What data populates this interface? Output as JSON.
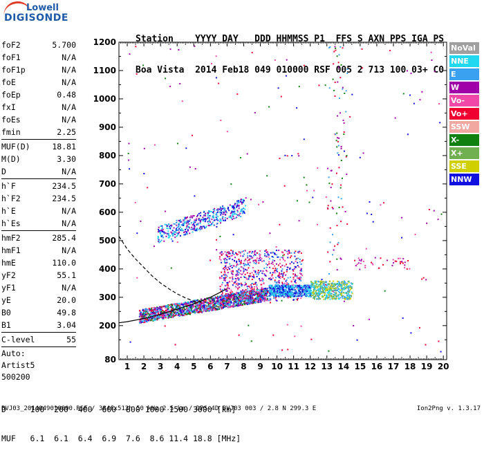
{
  "logo": {
    "brand_top": "Lowell",
    "brand_bottom": "DIGISONDE"
  },
  "header": {
    "line1": "Station    YYYY DAY   DDD HHMMSS P1  FFS S AXN PPS IGA PS",
    "line2": "Boa Vista  2014 Feb18 049 010000 RSF 005 2 713 100 03+ C0"
  },
  "params": [
    {
      "type": "row",
      "label": "foF2",
      "value": "5.700"
    },
    {
      "type": "row",
      "label": "foF1",
      "value": "N/A"
    },
    {
      "type": "row",
      "label": "foF1p",
      "value": "N/A"
    },
    {
      "type": "row",
      "label": "foE",
      "value": "N/A"
    },
    {
      "type": "row",
      "label": "foEp",
      "value": "0.48"
    },
    {
      "type": "row",
      "label": "fxI",
      "value": "N/A"
    },
    {
      "type": "row",
      "label": "foEs",
      "value": "N/A"
    },
    {
      "type": "row",
      "label": "fmin",
      "value": "2.25"
    },
    {
      "type": "sep"
    },
    {
      "type": "row",
      "label": "MUF(D)",
      "value": "18.81"
    },
    {
      "type": "row",
      "label": "M(D)",
      "value": "3.30"
    },
    {
      "type": "row",
      "label": "D",
      "value": "N/A"
    },
    {
      "type": "sep"
    },
    {
      "type": "row",
      "label": "h`F",
      "value": "234.5"
    },
    {
      "type": "row",
      "label": "h`F2",
      "value": "234.5"
    },
    {
      "type": "row",
      "label": "h`E",
      "value": "N/A"
    },
    {
      "type": "row",
      "label": "h`Es",
      "value": "N/A"
    },
    {
      "type": "sep"
    },
    {
      "type": "row",
      "label": "hmF2",
      "value": "285.4"
    },
    {
      "type": "row",
      "label": "hmF1",
      "value": "N/A"
    },
    {
      "type": "row",
      "label": "hmE",
      "value": "110.0"
    },
    {
      "type": "row",
      "label": "yF2",
      "value": "55.1"
    },
    {
      "type": "row",
      "label": "yF1",
      "value": "N/A"
    },
    {
      "type": "row",
      "label": "yE",
      "value": "20.0"
    },
    {
      "type": "row",
      "label": "B0",
      "value": "49.8"
    },
    {
      "type": "row",
      "label": "B1",
      "value": "3.04"
    },
    {
      "type": "sep"
    },
    {
      "type": "row",
      "label": "C-level",
      "value": "55"
    },
    {
      "type": "sep"
    },
    {
      "type": "text",
      "label": "Auto:"
    },
    {
      "type": "text",
      "label": "Artist5"
    },
    {
      "type": "text",
      "label": "500200"
    }
  ],
  "legend": [
    {
      "label": "NoVal",
      "color": "#a0a0a0"
    },
    {
      "label": "NNE",
      "color": "#22d8f0"
    },
    {
      "label": "E",
      "color": "#3aa0f0"
    },
    {
      "label": "W",
      "color": "#a000a8"
    },
    {
      "label": "Vo-",
      "color": "#f048a8"
    },
    {
      "label": "Vo+",
      "color": "#f00030"
    },
    {
      "label": "SSW",
      "color": "#f0a8a0"
    },
    {
      "label": "X-",
      "color": "#108010"
    },
    {
      "label": "X+",
      "color": "#70b050"
    },
    {
      "label": "SSE",
      "color": "#d0d000"
    },
    {
      "label": "NNW",
      "color": "#1010e0"
    }
  ],
  "dmuf": {
    "line1": "D     100  200  400  600  800 1000 1500 3000 [km]",
    "line2": "MUF   6.1  6.1  6.4  6.9  7.6  8.6 11.4 18.8 [MHz]"
  },
  "footer": "BVJ03_2014049010000.RSF / 384fx512h 50 kHz 2.5 km / DPS-4D BVJ03 003 / 2.8 N 299.3 E",
  "version": "Ion2Png v. 1.3.17",
  "chart_data": {
    "type": "scatter",
    "xlim": [
      0.5,
      20.2
    ],
    "ylim": [
      80,
      1200
    ],
    "x_ticks": [
      1,
      2,
      3,
      4,
      5,
      6,
      7,
      8,
      9,
      10,
      11,
      12,
      13,
      14,
      15,
      16,
      17,
      18,
      19,
      20
    ],
    "y_ticks": [
      200,
      300,
      400,
      500,
      600,
      700,
      800,
      900,
      1000,
      1100,
      1200
    ],
    "y_tick_labels": [
      "200",
      "300",
      "400",
      "500",
      "600",
      "700",
      "800",
      "900",
      "1000",
      "1100",
      "1200"
    ],
    "y_bottom_label": "80",
    "grid": false,
    "legend_placement": "right",
    "clusters": [
      {
        "name": "F-layer trace",
        "x": [
          1.7,
          9.4
        ],
        "y": [
          225,
          330
        ],
        "slope": true,
        "n": 1800,
        "colors": [
          "#22d8f0",
          "#3aa0f0",
          "#a000a8",
          "#f048a8",
          "#f00030",
          "#1010e0",
          "#108010"
        ]
      },
      {
        "name": "F-layer spread",
        "x": [
          6.5,
          11.5
        ],
        "y": [
          290,
          470
        ],
        "slope": false,
        "n": 700,
        "colors": [
          "#a000a8",
          "#f048a8",
          "#f00030",
          "#1010e0",
          "#3aa0f0"
        ]
      },
      {
        "name": "Band 9.5-12",
        "x": [
          9.5,
          12
        ],
        "y": [
          305,
          345
        ],
        "slope": false,
        "n": 450,
        "colors": [
          "#22d8f0",
          "#3aa0f0",
          "#1010e0"
        ]
      },
      {
        "name": "Band 12-14.5",
        "x": [
          12,
          14.5
        ],
        "y": [
          295,
          360
        ],
        "slope": false,
        "n": 450,
        "colors": [
          "#22d8f0",
          "#3aa0f0",
          "#d0d000",
          "#70b050"
        ]
      },
      {
        "name": "Second hop",
        "x": [
          2.8,
          8.1
        ],
        "y": [
          510,
          645
        ],
        "slope": true,
        "n": 450,
        "colors": [
          "#1010e0",
          "#22d8f0",
          "#3aa0f0",
          "#a000a8"
        ]
      },
      {
        "name": "High frequency echoes",
        "x": [
          14.5,
          18
        ],
        "y": [
          400,
          445
        ],
        "slope": false,
        "n": 40,
        "colors": [
          "#f00030",
          "#f048a8",
          "#a000a8"
        ]
      },
      {
        "name": "Sparse",
        "x": [
          1,
          20
        ],
        "y": [
          100,
          1190
        ],
        "slope": false,
        "n": 180,
        "colors": [
          "#f00030",
          "#a000a8",
          "#f048a8",
          "#1010e0",
          "#108010"
        ]
      },
      {
        "name": "Vertical column",
        "x": [
          13,
          14.2
        ],
        "y": [
          380,
          1190
        ],
        "slope": false,
        "n": 90,
        "colors": [
          "#f00030",
          "#a000a8",
          "#108010",
          "#3aa0f0"
        ]
      }
    ],
    "curves": [
      {
        "name": "Profile solid",
        "style": "solid",
        "points": [
          [
            0.5,
            210
          ],
          [
            1,
            214
          ],
          [
            2,
            225
          ],
          [
            3,
            240
          ],
          [
            4,
            258
          ],
          [
            5,
            277
          ],
          [
            6,
            300
          ],
          [
            6.5,
            315
          ],
          [
            7,
            330
          ]
        ]
      },
      {
        "name": "Profile dashed",
        "style": "dashed",
        "points": [
          [
            0.5,
            515
          ],
          [
            1,
            470
          ],
          [
            1.5,
            435
          ],
          [
            2,
            405
          ],
          [
            2.5,
            375
          ],
          [
            3,
            350
          ],
          [
            3.5,
            330
          ],
          [
            4,
            312
          ],
          [
            4.5,
            298
          ],
          [
            5,
            286
          ],
          [
            5.5,
            282
          ]
        ]
      }
    ]
  }
}
